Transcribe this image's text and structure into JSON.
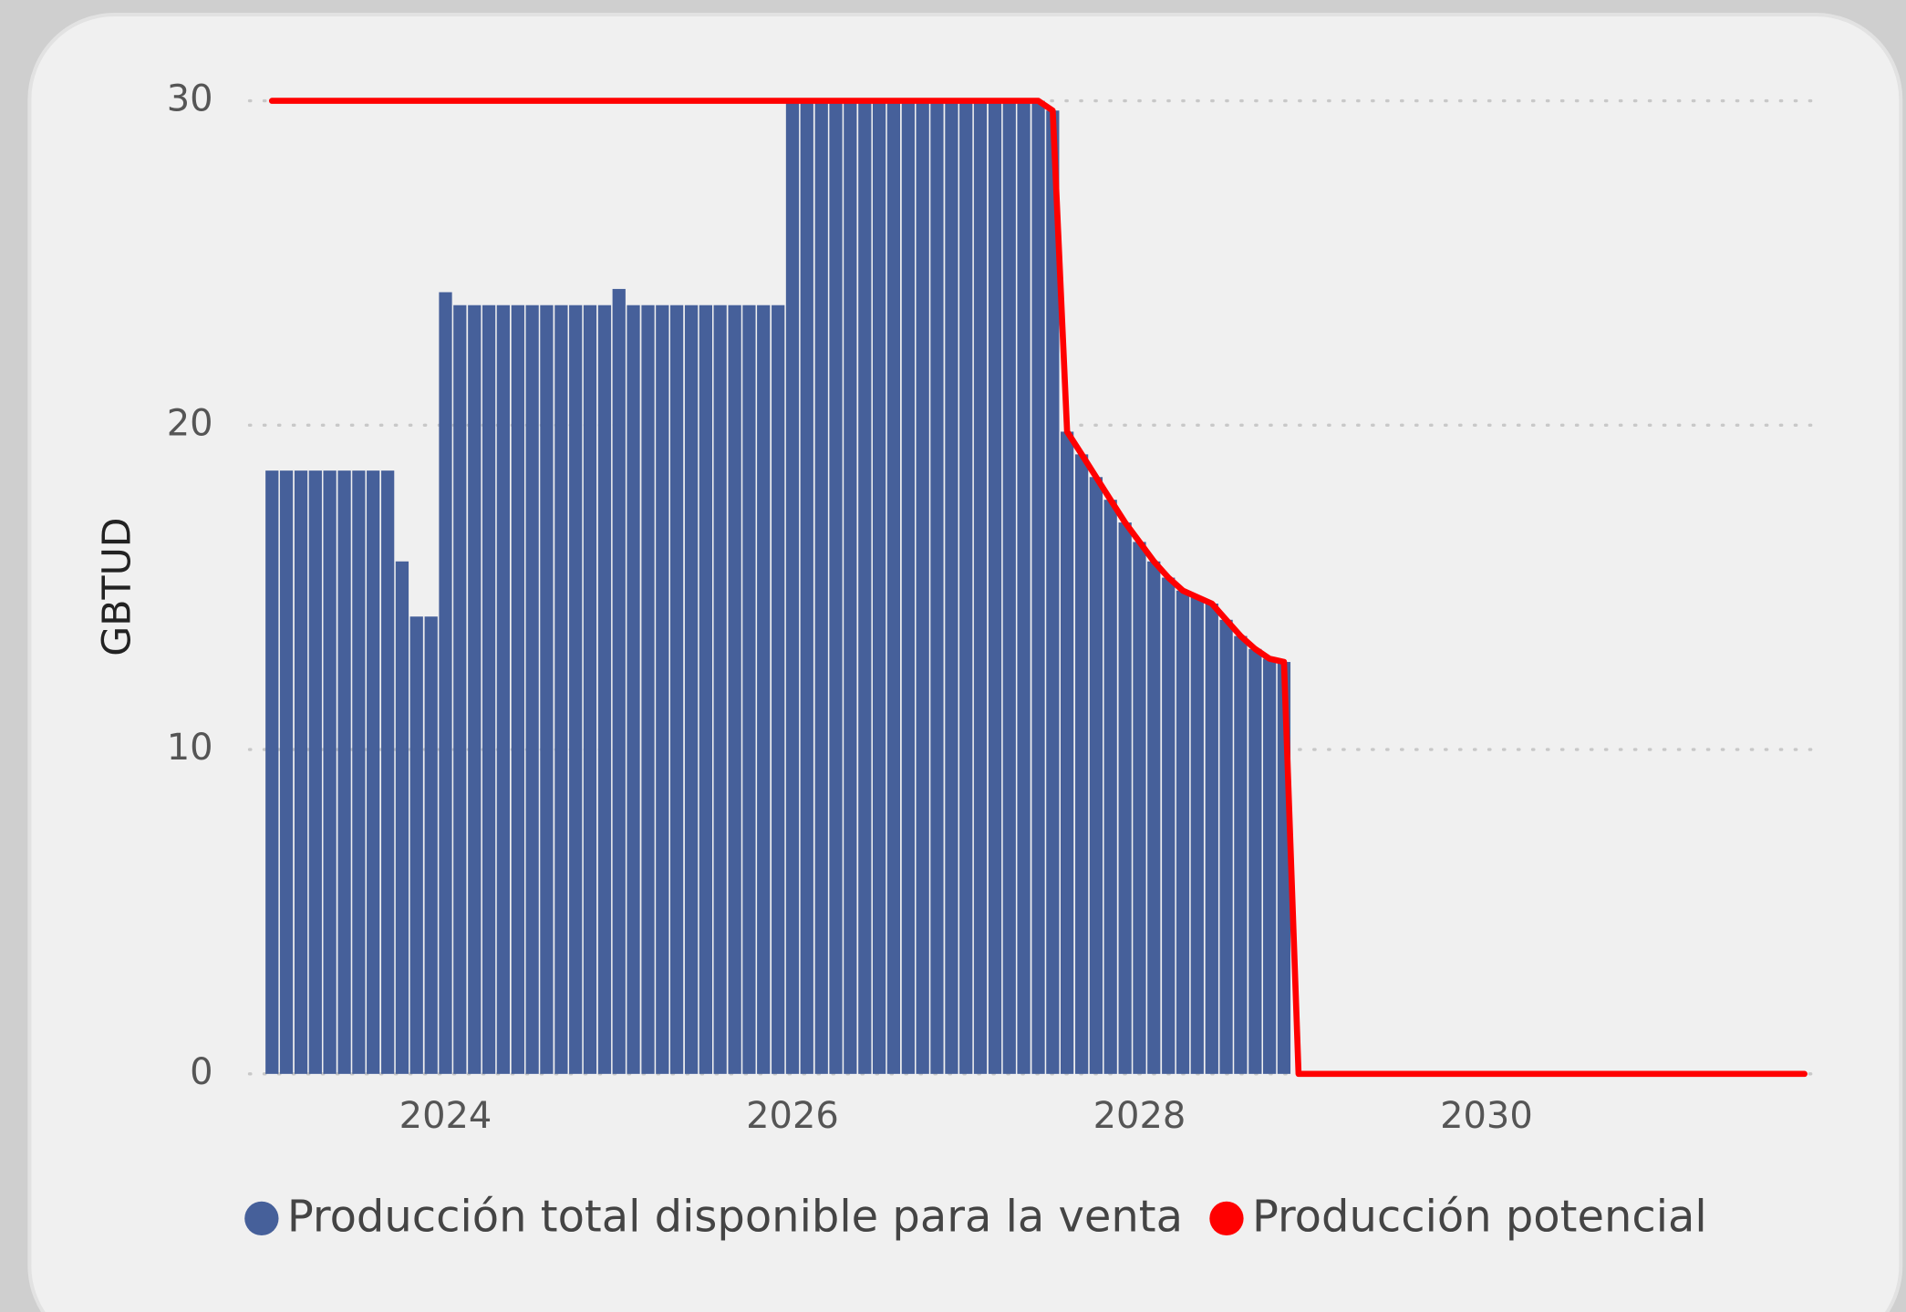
{
  "chart_data": {
    "type": "bar_line",
    "y_axis_label": "GBTUD",
    "x": [
      2023,
      2023.083,
      2023.167,
      2023.25,
      2023.333,
      2023.417,
      2023.5,
      2023.583,
      2023.667,
      2023.75,
      2023.833,
      2023.917,
      2024,
      2024.083,
      2024.167,
      2024.25,
      2024.333,
      2024.417,
      2024.5,
      2024.583,
      2024.667,
      2024.75,
      2024.833,
      2024.917,
      2025,
      2025.083,
      2025.167,
      2025.25,
      2025.333,
      2025.417,
      2025.5,
      2025.583,
      2025.667,
      2025.75,
      2025.833,
      2025.917,
      2026,
      2026.083,
      2026.167,
      2026.25,
      2026.333,
      2026.417,
      2026.5,
      2026.583,
      2026.667,
      2026.75,
      2026.833,
      2026.917,
      2027,
      2027.083,
      2027.167,
      2027.25,
      2027.333,
      2027.417,
      2027.5,
      2027.583,
      2027.667,
      2027.75,
      2027.833,
      2027.917,
      2028,
      2028.083,
      2028.167,
      2028.25,
      2028.333,
      2028.417,
      2028.5,
      2028.583,
      2028.667,
      2028.75,
      2028.833,
      2028.917,
      2029,
      2029.083,
      2029.167,
      2029.25,
      2029.333,
      2029.417,
      2029.5,
      2029.583,
      2029.667,
      2029.75,
      2029.833,
      2029.917,
      2030,
      2030.083,
      2030.167,
      2030.25,
      2030.333,
      2030.417,
      2030.5,
      2030.583,
      2030.667,
      2030.75,
      2030.833,
      2030.917,
      2031,
      2031.083,
      2031.167,
      2031.25,
      2031.333,
      2031.417,
      2031.5,
      2031.583,
      2031.667,
      2031.75,
      2031.833
    ],
    "series": [
      {
        "name": "Producción total disponible para la venta",
        "type": "bar",
        "color": "#46609a",
        "values": [
          18.6,
          18.6,
          18.6,
          18.6,
          18.6,
          18.6,
          18.6,
          18.6,
          18.6,
          15.8,
          14.1,
          14.1,
          24.1,
          23.7,
          23.7,
          23.7,
          23.7,
          23.7,
          23.7,
          23.7,
          23.7,
          23.7,
          23.7,
          23.7,
          24.2,
          23.7,
          23.7,
          23.7,
          23.7,
          23.7,
          23.7,
          23.7,
          23.7,
          23.7,
          23.7,
          23.7,
          30,
          30,
          30,
          30,
          30,
          30,
          30,
          30,
          30,
          30,
          30,
          30,
          30,
          30,
          30,
          30,
          30,
          30,
          29.7,
          19.8,
          19.1,
          18.4,
          17.7,
          17.0,
          16.4,
          15.8,
          15.3,
          14.9,
          14.7,
          14.5,
          14.0,
          13.5,
          13.1,
          12.8,
          12.7,
          null,
          null,
          null,
          null,
          null,
          null,
          null,
          null,
          null,
          null,
          null,
          null,
          null,
          null,
          null,
          null,
          null,
          null,
          null,
          null,
          null,
          null,
          null,
          null,
          null,
          null,
          null,
          null,
          null,
          null,
          null,
          null,
          null,
          null,
          null,
          null
        ]
      },
      {
        "name": "Producción potencial",
        "type": "line",
        "color": "#ff0000",
        "values": [
          30,
          30,
          30,
          30,
          30,
          30,
          30,
          30,
          30,
          30,
          30,
          30,
          30,
          30,
          30,
          30,
          30,
          30,
          30,
          30,
          30,
          30,
          30,
          30,
          30,
          30,
          30,
          30,
          30,
          30,
          30,
          30,
          30,
          30,
          30,
          30,
          30,
          30,
          30,
          30,
          30,
          30,
          30,
          30,
          30,
          30,
          30,
          30,
          30,
          30,
          30,
          30,
          30,
          30,
          29.7,
          19.8,
          19.1,
          18.4,
          17.7,
          17.0,
          16.4,
          15.8,
          15.3,
          14.9,
          14.7,
          14.5,
          14.0,
          13.5,
          13.1,
          12.8,
          12.7,
          0,
          0,
          0,
          0,
          0,
          0,
          0,
          0,
          0,
          0,
          0,
          0,
          0,
          0,
          0,
          0,
          0,
          0,
          0,
          0,
          0,
          0,
          0,
          0,
          0,
          0,
          0,
          0,
          0,
          0,
          0,
          0,
          0,
          0,
          0,
          0
        ]
      }
    ],
    "xlim": [
      2022.87,
      2031.87
    ],
    "xticks": [
      2024,
      2026,
      2028,
      2030
    ],
    "ylim": [
      0,
      30
    ],
    "yticks": [
      0,
      10,
      20,
      30
    ],
    "grid": true,
    "legend": "bottom"
  }
}
